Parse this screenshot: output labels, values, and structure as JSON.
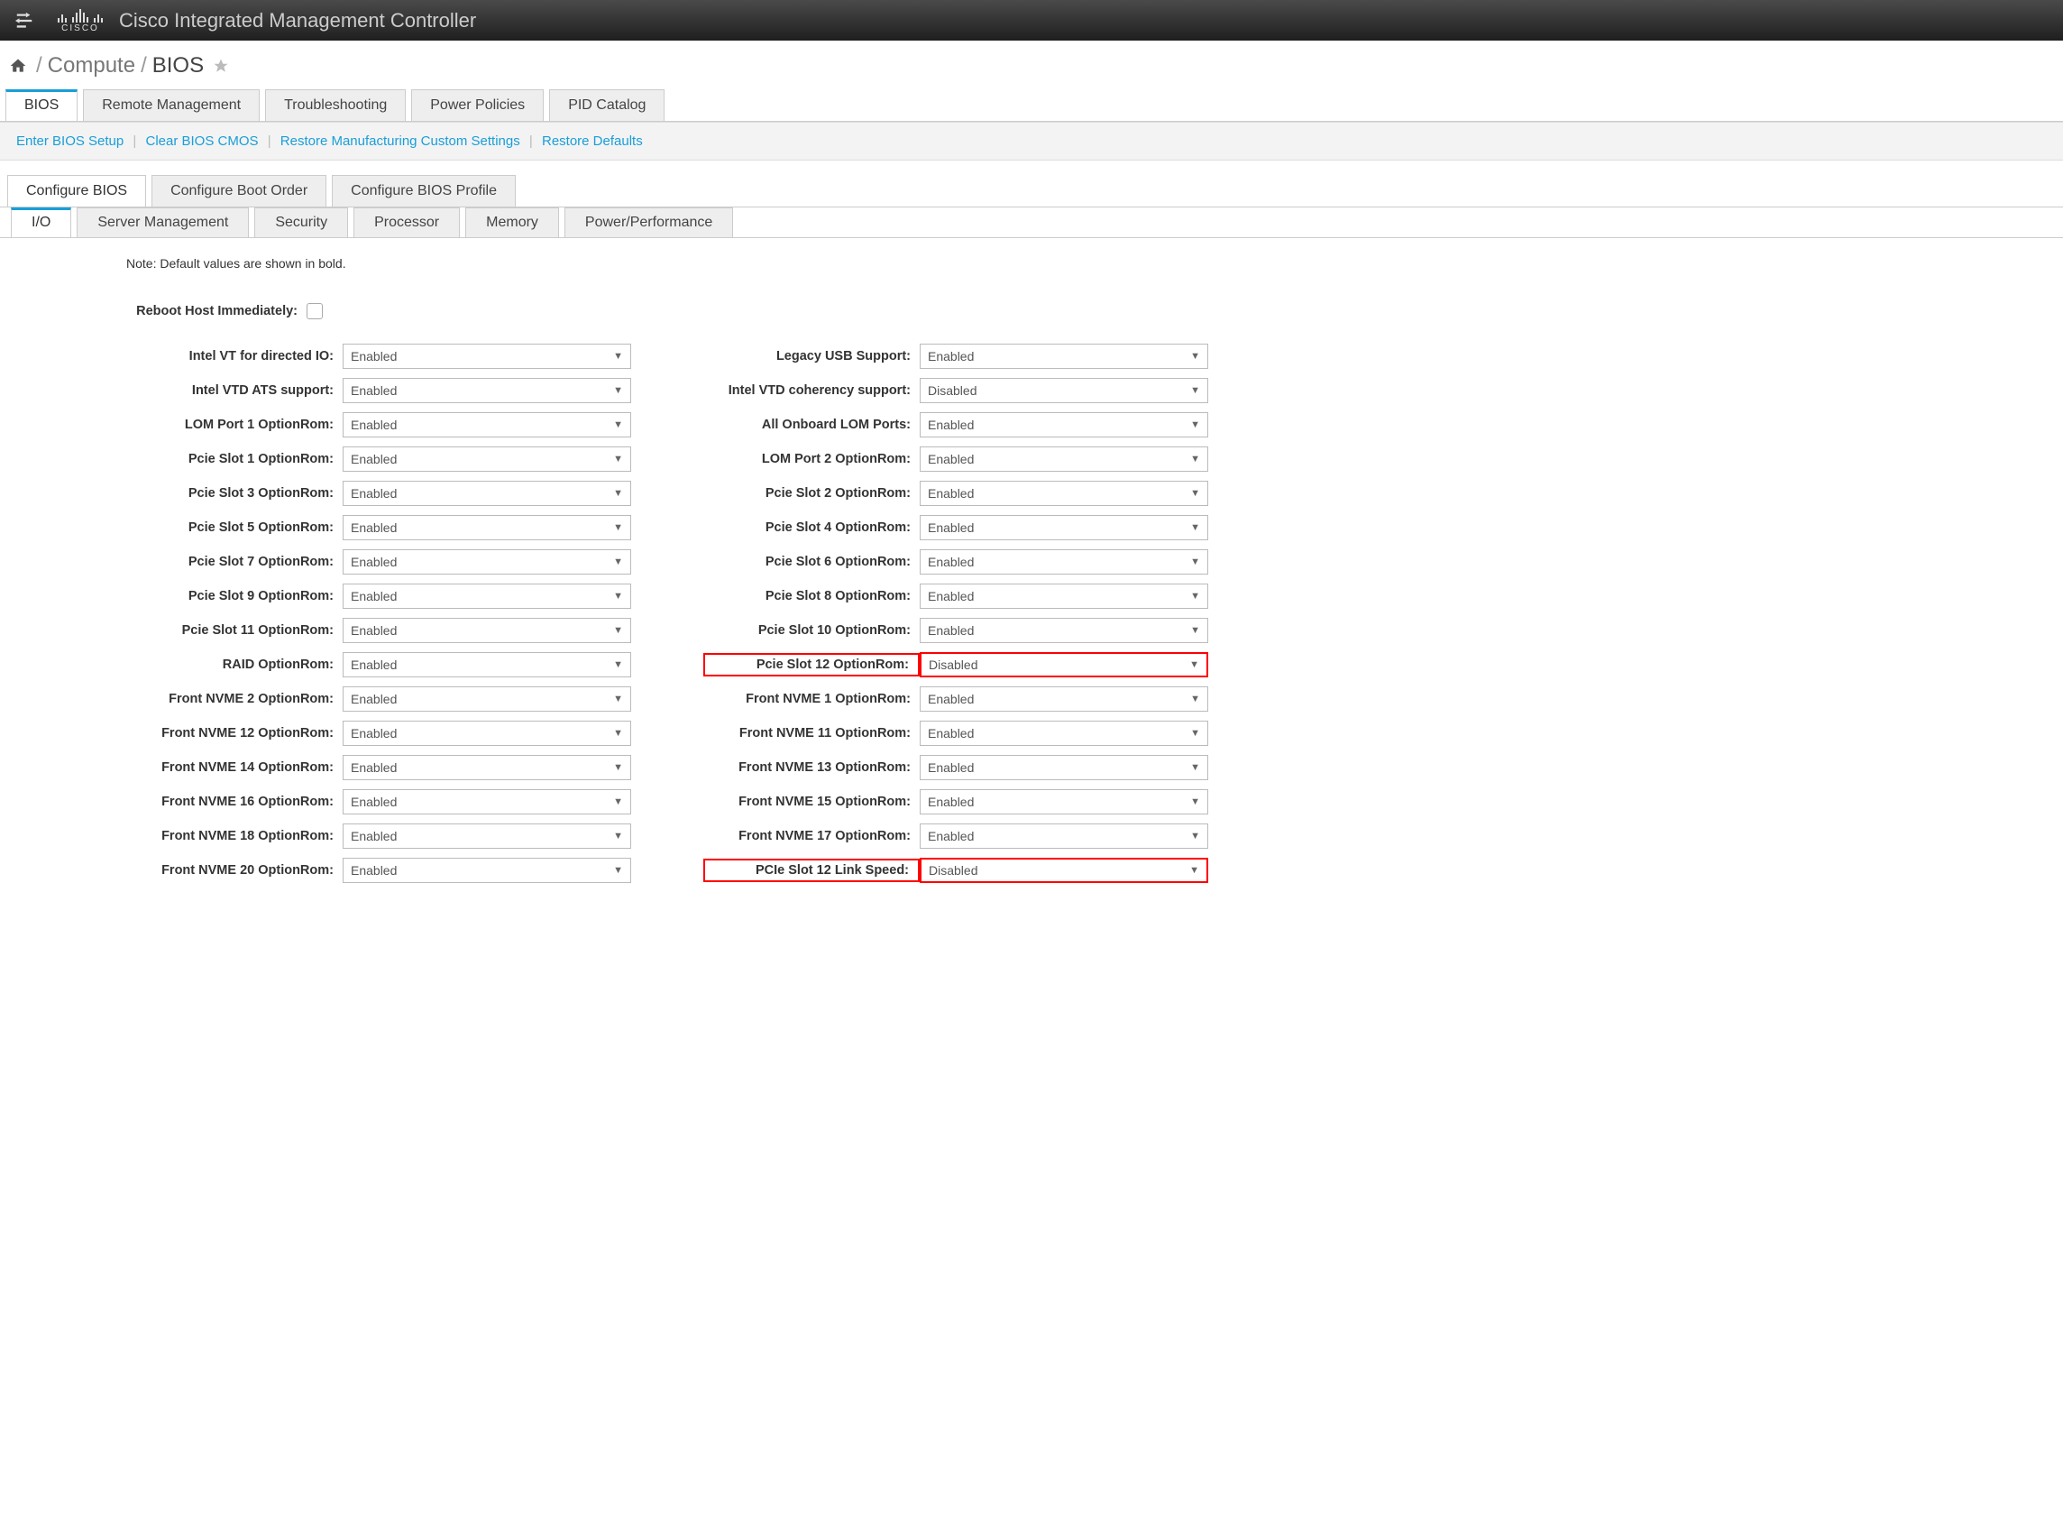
{
  "header": {
    "title": "Cisco Integrated Management Controller"
  },
  "breadcrumb": {
    "seg1": "Compute",
    "current": "BIOS"
  },
  "main_tabs": {
    "items": [
      "BIOS",
      "Remote Management",
      "Troubleshooting",
      "Power Policies",
      "PID Catalog"
    ],
    "active": 0
  },
  "actions": {
    "a0": "Enter BIOS Setup",
    "a1": "Clear BIOS CMOS",
    "a2": "Restore Manufacturing Custom Settings",
    "a3": "Restore Defaults"
  },
  "sub_tabs": {
    "items": [
      "Configure BIOS",
      "Configure Boot Order",
      "Configure BIOS Profile"
    ],
    "active": 0
  },
  "sub_tabs2": {
    "items": [
      "I/O",
      "Server Management",
      "Security",
      "Processor",
      "Memory",
      "Power/Performance"
    ],
    "active": 0
  },
  "note": "Note: Default values are shown in bold.",
  "reboot_label": "Reboot Host Immediately:",
  "left_fields": [
    {
      "label": "Intel VT for directed IO:",
      "value": "Enabled",
      "hl": false
    },
    {
      "label": "Intel VTD ATS support:",
      "value": "Enabled",
      "hl": false
    },
    {
      "label": "LOM Port 1 OptionRom:",
      "value": "Enabled",
      "hl": false
    },
    {
      "label": "Pcie Slot 1 OptionRom:",
      "value": "Enabled",
      "hl": false
    },
    {
      "label": "Pcie Slot 3 OptionRom:",
      "value": "Enabled",
      "hl": false
    },
    {
      "label": "Pcie Slot 5 OptionRom:",
      "value": "Enabled",
      "hl": false
    },
    {
      "label": "Pcie Slot 7 OptionRom:",
      "value": "Enabled",
      "hl": false
    },
    {
      "label": "Pcie Slot 9 OptionRom:",
      "value": "Enabled",
      "hl": false
    },
    {
      "label": "Pcie Slot 11 OptionRom:",
      "value": "Enabled",
      "hl": false
    },
    {
      "label": "RAID OptionRom:",
      "value": "Enabled",
      "hl": false
    },
    {
      "label": "Front NVME 2 OptionRom:",
      "value": "Enabled",
      "hl": false
    },
    {
      "label": "Front NVME 12 OptionRom:",
      "value": "Enabled",
      "hl": false
    },
    {
      "label": "Front NVME 14 OptionRom:",
      "value": "Enabled",
      "hl": false
    },
    {
      "label": "Front NVME 16 OptionRom:",
      "value": "Enabled",
      "hl": false
    },
    {
      "label": "Front NVME 18 OptionRom:",
      "value": "Enabled",
      "hl": false
    },
    {
      "label": "Front NVME 20 OptionRom:",
      "value": "Enabled",
      "hl": false
    }
  ],
  "right_fields": [
    {
      "label": "Legacy USB Support:",
      "value": "Enabled",
      "hl": false
    },
    {
      "label": "Intel VTD coherency support:",
      "value": "Disabled",
      "hl": false
    },
    {
      "label": "All Onboard LOM Ports:",
      "value": "Enabled",
      "hl": false
    },
    {
      "label": "LOM Port 2 OptionRom:",
      "value": "Enabled",
      "hl": false
    },
    {
      "label": "Pcie Slot 2 OptionRom:",
      "value": "Enabled",
      "hl": false
    },
    {
      "label": "Pcie Slot 4 OptionRom:",
      "value": "Enabled",
      "hl": false
    },
    {
      "label": "Pcie Slot 6 OptionRom:",
      "value": "Enabled",
      "hl": false
    },
    {
      "label": "Pcie Slot 8 OptionRom:",
      "value": "Enabled",
      "hl": false
    },
    {
      "label": "Pcie Slot 10 OptionRom:",
      "value": "Enabled",
      "hl": false
    },
    {
      "label": "Pcie Slot 12 OptionRom:",
      "value": "Disabled",
      "hl": true
    },
    {
      "label": "Front NVME 1 OptionRom:",
      "value": "Enabled",
      "hl": false
    },
    {
      "label": "Front NVME 11 OptionRom:",
      "value": "Enabled",
      "hl": false
    },
    {
      "label": "Front NVME 13 OptionRom:",
      "value": "Enabled",
      "hl": false
    },
    {
      "label": "Front NVME 15 OptionRom:",
      "value": "Enabled",
      "hl": false
    },
    {
      "label": "Front NVME 17 OptionRom:",
      "value": "Enabled",
      "hl": false
    },
    {
      "label": "PCIe Slot 12 Link Speed:",
      "value": "Disabled",
      "hl": true
    }
  ],
  "colors": {
    "accent": "#199ed8",
    "highlight": "#ff0000"
  }
}
